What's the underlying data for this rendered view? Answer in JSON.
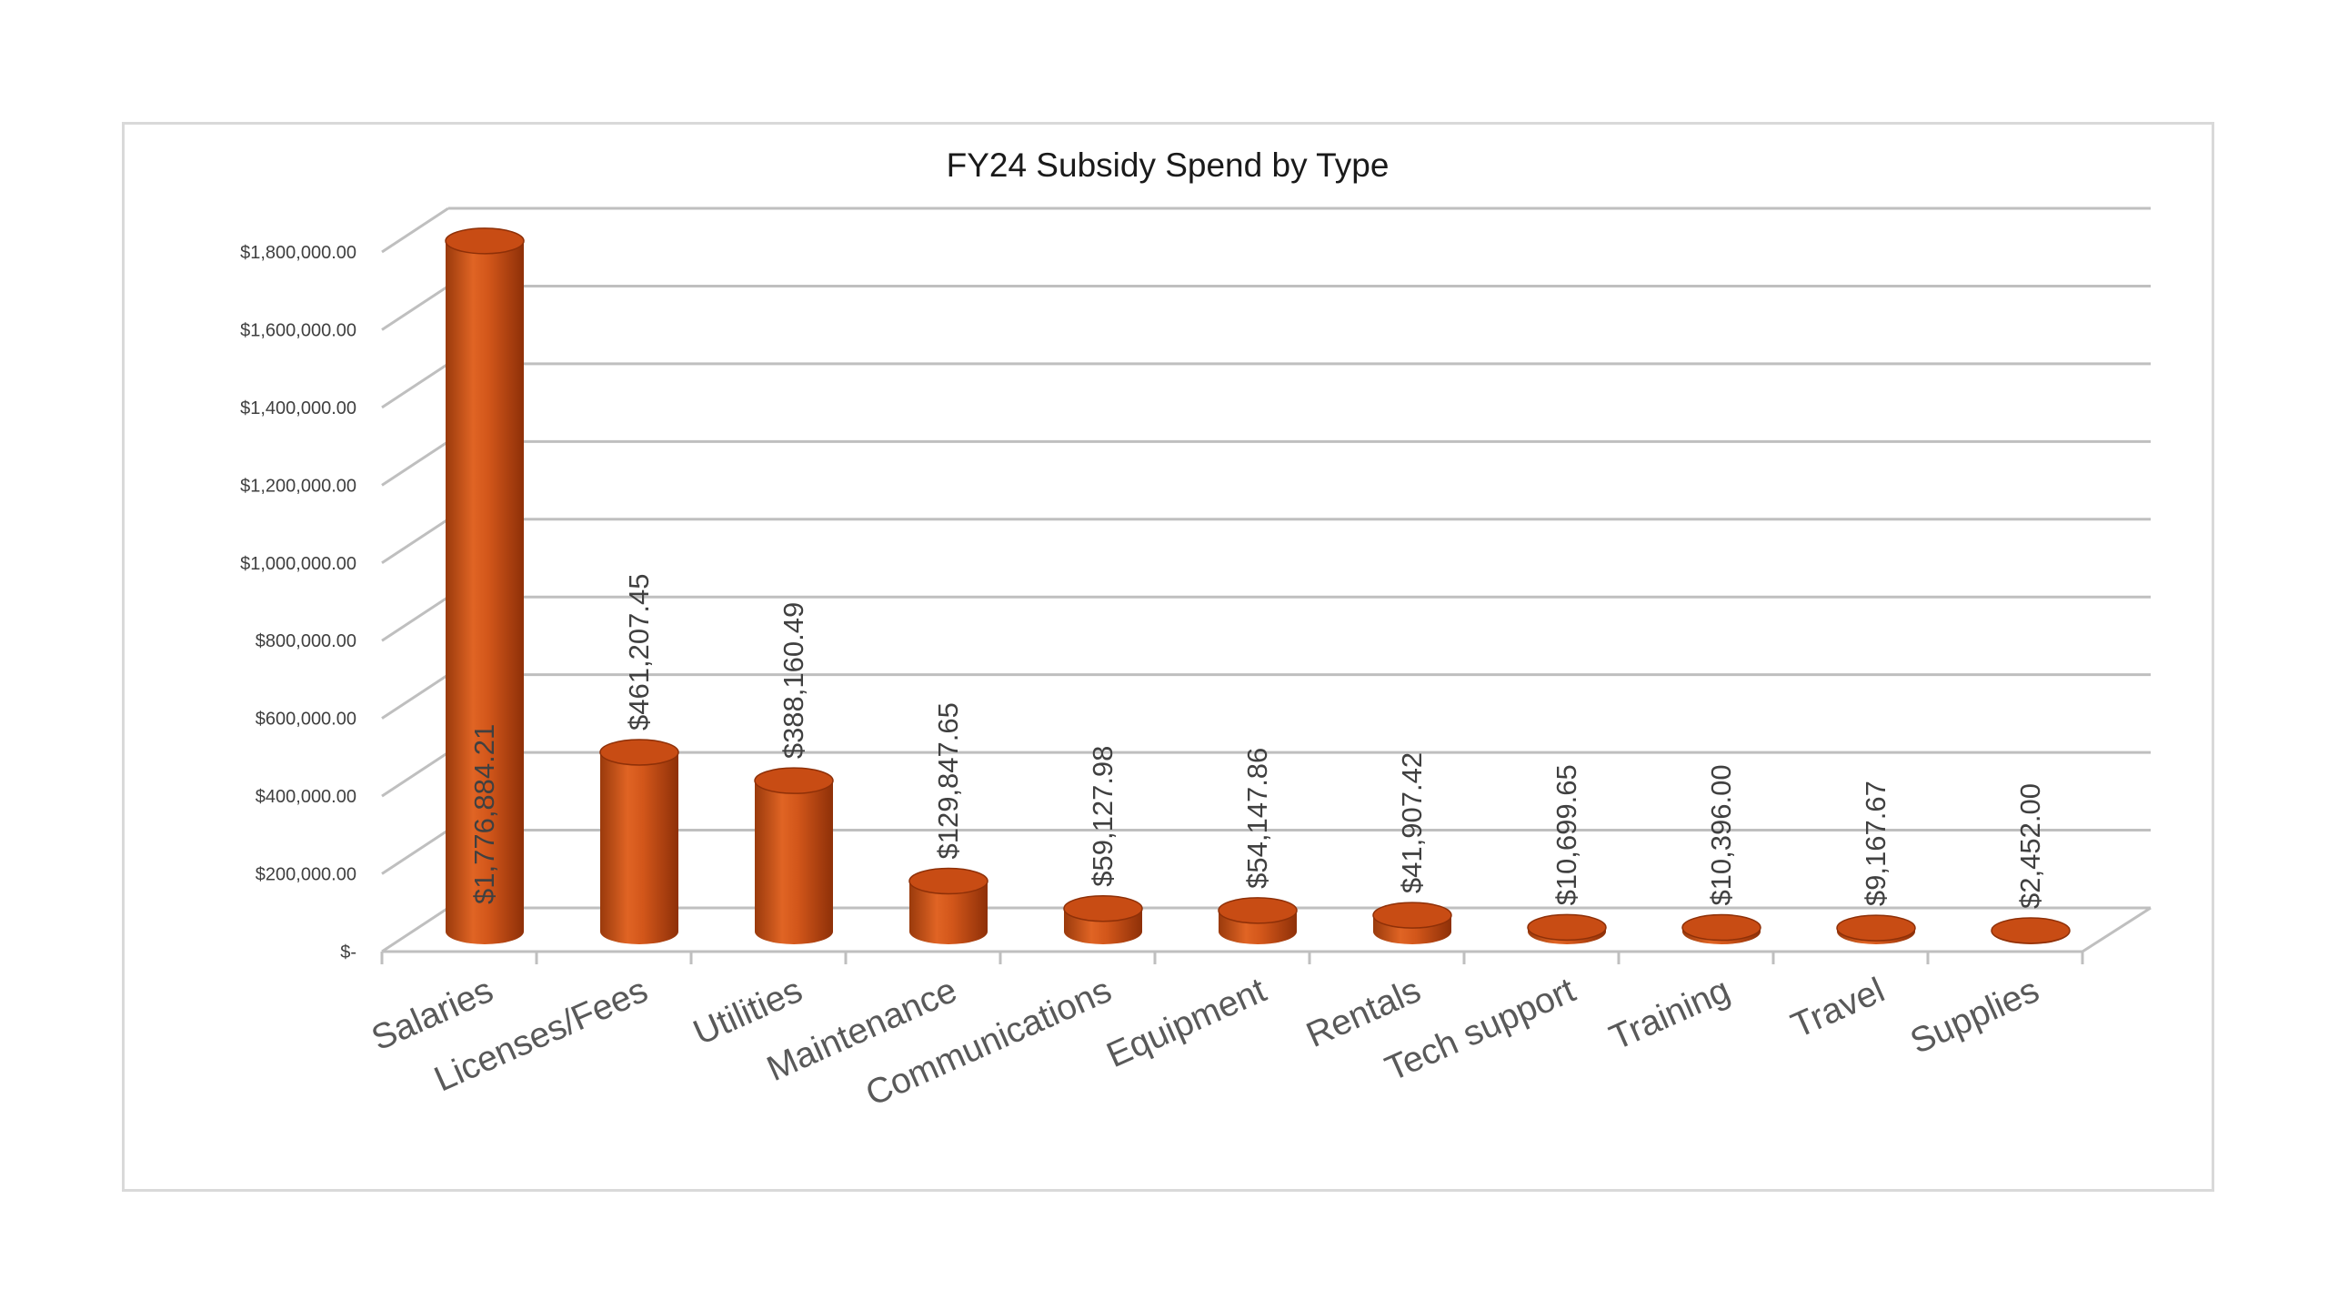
{
  "chart_data": {
    "type": "bar",
    "style": "3d-cylinder",
    "title": "FY24 Subsidy Spend by Type",
    "xlabel": "",
    "ylabel": "",
    "categories": [
      "Salaries",
      "Licenses/Fees",
      "Utilities",
      "Maintenance",
      "Communications",
      "Equipment",
      "Rentals",
      "Tech support",
      "Training",
      "Travel",
      "Supplies"
    ],
    "values": [
      1776884.21,
      461207.45,
      388160.49,
      129847.65,
      59127.98,
      54147.86,
      41907.42,
      10699.65,
      10396.0,
      9167.67,
      2452.0
    ],
    "data_labels": [
      "$1,776,884.21",
      "$461,207.45",
      "$388,160.49",
      "$129,847.65",
      "$59,127.98",
      "$54,147.86",
      "$41,907.42",
      "$10,699.65",
      "$10,396.00",
      "$9,167.67",
      "$2,452.00"
    ],
    "ylim": [
      0,
      1800000
    ],
    "y_ticks": [
      0,
      200000,
      400000,
      600000,
      800000,
      1000000,
      1200000,
      1400000,
      1600000,
      1800000
    ],
    "y_tick_labels": [
      "$-",
      "$200,000.00",
      "$400,000.00",
      "$600,000.00",
      "$800,000.00",
      "$1,000,000.00",
      "$1,200,000.00",
      "$1,400,000.00",
      "$1,600,000.00",
      "$1,800,000.00"
    ],
    "grid": true,
    "legend": "none",
    "colors": {
      "bar": "#c84c14",
      "bar_highlight": "#e8662a",
      "bar_shadow": "#8e3008",
      "gridline": "#bfbfbf",
      "axis": "#bfbfbf"
    }
  }
}
